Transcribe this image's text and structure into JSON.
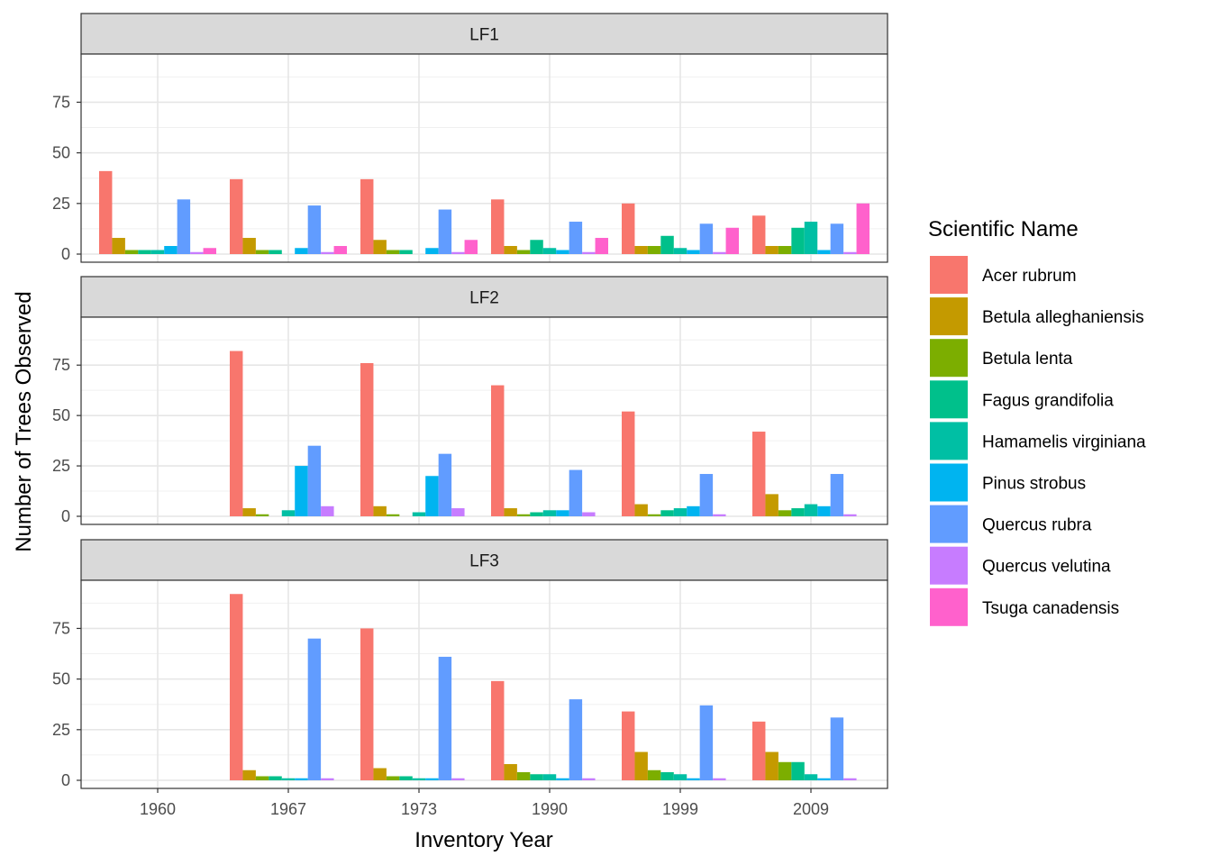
{
  "chart_data": {
    "type": "bar",
    "xlabel": "Inventory Year",
    "ylabel": "Number of Trees Observed",
    "categories": [
      "1960",
      "1967",
      "1973",
      "1990",
      "1999",
      "2009"
    ],
    "ylim": [
      0,
      97
    ],
    "yticks": [
      0,
      25,
      50,
      75
    ],
    "legend": {
      "title": "Scientific Name",
      "position": "right",
      "entries": [
        {
          "name": "Acer rubrum",
          "color": "#F8766D"
        },
        {
          "name": "Betula alleghaniensis",
          "color": "#C49A00"
        },
        {
          "name": "Betula lenta",
          "color": "#7CAE00"
        },
        {
          "name": "Fagus grandifolia",
          "color": "#00C08B"
        },
        {
          "name": "Hamamelis virginiana",
          "color": "#00BFA4"
        },
        {
          "name": "Pinus strobus",
          "color": "#00B4F0"
        },
        {
          "name": "Quercus rubra",
          "color": "#619CFF"
        },
        {
          "name": "Quercus velutina",
          "color": "#C77CFF"
        },
        {
          "name": "Tsuga canadensis",
          "color": "#FF61CC"
        }
      ]
    },
    "panels": [
      {
        "label": "LF1",
        "series": [
          {
            "name": "Acer rubrum",
            "values": [
              41,
              37,
              37,
              27,
              25,
              19
            ]
          },
          {
            "name": "Betula alleghaniensis",
            "values": [
              8,
              8,
              7,
              4,
              4,
              4
            ]
          },
          {
            "name": "Betula lenta",
            "values": [
              2,
              2,
              2,
              2,
              4,
              4
            ]
          },
          {
            "name": "Fagus grandifolia",
            "values": [
              2,
              2,
              2,
              7,
              9,
              13
            ]
          },
          {
            "name": "Hamamelis virginiana",
            "values": [
              2,
              0,
              0,
              3,
              3,
              16
            ]
          },
          {
            "name": "Pinus strobus",
            "values": [
              4,
              3,
              3,
              2,
              2,
              2
            ]
          },
          {
            "name": "Quercus rubra",
            "values": [
              27,
              24,
              22,
              16,
              15,
              15
            ]
          },
          {
            "name": "Quercus velutina",
            "values": [
              1,
              1,
              1,
              1,
              1,
              1
            ]
          },
          {
            "name": "Tsuga canadensis",
            "values": [
              3,
              4,
              7,
              8,
              13,
              25
            ]
          }
        ]
      },
      {
        "label": "LF2",
        "series": [
          {
            "name": "Acer rubrum",
            "values": [
              null,
              82,
              76,
              65,
              52,
              42
            ]
          },
          {
            "name": "Betula alleghaniensis",
            "values": [
              null,
              4,
              5,
              4,
              6,
              11
            ]
          },
          {
            "name": "Betula lenta",
            "values": [
              null,
              1,
              1,
              1,
              1,
              3
            ]
          },
          {
            "name": "Fagus grandifolia",
            "values": [
              null,
              0,
              0,
              2,
              3,
              4
            ]
          },
          {
            "name": "Hamamelis virginiana",
            "values": [
              null,
              3,
              2,
              3,
              4,
              6
            ]
          },
          {
            "name": "Pinus strobus",
            "values": [
              null,
              25,
              20,
              3,
              5,
              5
            ]
          },
          {
            "name": "Quercus rubra",
            "values": [
              null,
              35,
              31,
              23,
              21,
              21
            ]
          },
          {
            "name": "Quercus velutina",
            "values": [
              null,
              5,
              4,
              2,
              1,
              1
            ]
          },
          {
            "name": "Tsuga canadensis",
            "values": [
              null,
              null,
              null,
              null,
              null,
              null
            ]
          }
        ]
      },
      {
        "label": "LF3",
        "series": [
          {
            "name": "Acer rubrum",
            "values": [
              null,
              92,
              75,
              49,
              34,
              29
            ]
          },
          {
            "name": "Betula alleghaniensis",
            "values": [
              null,
              5,
              6,
              8,
              14,
              14
            ]
          },
          {
            "name": "Betula lenta",
            "values": [
              null,
              2,
              2,
              4,
              5,
              9
            ]
          },
          {
            "name": "Fagus grandifolia",
            "values": [
              null,
              2,
              2,
              3,
              4,
              9
            ]
          },
          {
            "name": "Hamamelis virginiana",
            "values": [
              null,
              1,
              1,
              3,
              3,
              3
            ]
          },
          {
            "name": "Pinus strobus",
            "values": [
              null,
              1,
              1,
              1,
              1,
              1
            ]
          },
          {
            "name": "Quercus rubra",
            "values": [
              null,
              70,
              61,
              40,
              37,
              31
            ]
          },
          {
            "name": "Quercus velutina",
            "values": [
              null,
              1,
              1,
              1,
              1,
              1
            ]
          },
          {
            "name": "Tsuga canadensis",
            "values": [
              null,
              null,
              null,
              null,
              null,
              null
            ]
          }
        ]
      }
    ]
  }
}
